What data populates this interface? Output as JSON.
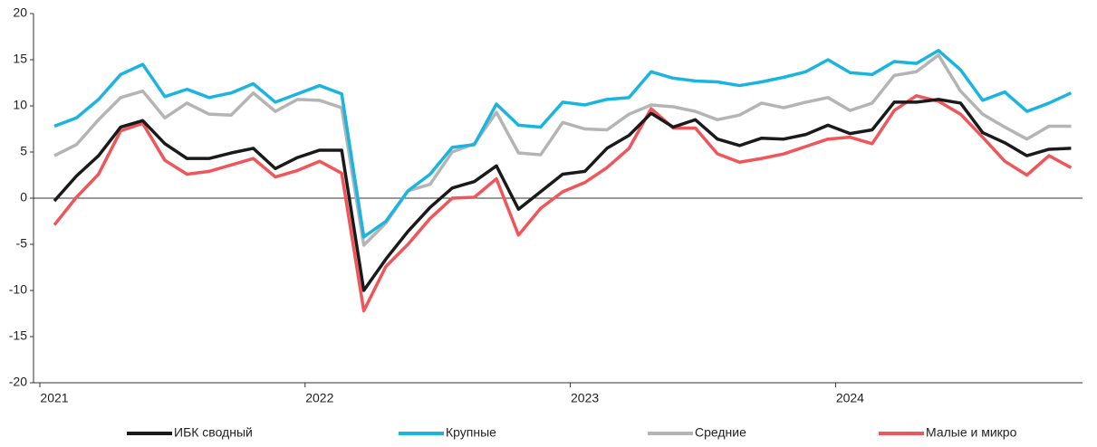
{
  "chart_data": {
    "type": "line",
    "categories": [
      "2021",
      null,
      null,
      null,
      null,
      null,
      null,
      null,
      null,
      null,
      null,
      null,
      "2022",
      null,
      null,
      null,
      null,
      null,
      null,
      null,
      null,
      null,
      null,
      null,
      "2023",
      null,
      null,
      null,
      null,
      null,
      null,
      null,
      null,
      null,
      null,
      null,
      "2024",
      null,
      null,
      null,
      null,
      null,
      null,
      null,
      null,
      null,
      null
    ],
    "series": [
      {
        "name": "ИБК сводный",
        "color": "#1a1a1a",
        "values": [
          -0.3,
          2.4,
          4.6,
          7.7,
          8.4,
          5.9,
          4.3,
          4.3,
          4.9,
          5.4,
          3.2,
          4.4,
          5.2,
          5.2,
          -10,
          -6.6,
          -3.6,
          -1.0,
          1.1,
          1.8,
          3.5,
          -1.2,
          0.7,
          2.6,
          2.9,
          5.4,
          6.8,
          9.2,
          7.7,
          8.5,
          6.4,
          5.7,
          6.5,
          6.4,
          6.9,
          7.9,
          7.0,
          7.4,
          10.4,
          10.4,
          10.7,
          10.3,
          7.1,
          6.0,
          4.6,
          5.3,
          5.4
        ]
      },
      {
        "name": "Крупные",
        "color": "#1ab4e0",
        "values": [
          7.8,
          8.7,
          10.7,
          13.4,
          14.5,
          11.0,
          11.8,
          10.9,
          11.4,
          12.4,
          10.4,
          11.3,
          12.2,
          11.3,
          -4.2,
          -2.5,
          0.8,
          2.6,
          5.5,
          5.8,
          10.2,
          7.9,
          7.7,
          10.4,
          10.1,
          10.7,
          10.9,
          13.7,
          13.0,
          12.7,
          12.6,
          12.2,
          12.6,
          13.1,
          13.7,
          15.0,
          13.6,
          13.4,
          14.8,
          14.6,
          16.0,
          13.9,
          10.6,
          11.5,
          9.4,
          10.3,
          11.4
        ]
      },
      {
        "name": "Средние",
        "color": "#b4b4b4",
        "values": [
          4.6,
          5.8,
          8.5,
          10.9,
          11.6,
          8.7,
          10.3,
          9.1,
          9.0,
          11.4,
          9.4,
          10.7,
          10.6,
          9.8,
          -5.1,
          -2.7,
          0.8,
          1.5,
          5.0,
          5.9,
          9.3,
          4.9,
          4.7,
          8.2,
          7.5,
          7.4,
          9.1,
          10.1,
          9.9,
          9.4,
          8.5,
          9.0,
          10.3,
          9.8,
          10.4,
          10.9,
          9.5,
          10.3,
          13.3,
          13.7,
          15.5,
          11.6,
          9.1,
          7.7,
          6.4,
          7.8,
          7.8
        ]
      },
      {
        "name": "Малые и микро",
        "color": "#f0555a",
        "values": [
          -2.9,
          0.1,
          2.6,
          7.3,
          8.1,
          4.1,
          2.6,
          2.9,
          3.6,
          4.3,
          2.3,
          3.0,
          4.0,
          2.7,
          -12.2,
          -7.4,
          -5.0,
          -2.2,
          0.0,
          0.1,
          2.1,
          -4.0,
          -1.1,
          0.7,
          1.7,
          3.3,
          5.4,
          9.7,
          7.6,
          7.6,
          4.8,
          3.9,
          4.3,
          4.8,
          5.6,
          6.4,
          6.6,
          5.9,
          9.5,
          11.1,
          10.5,
          9.1,
          6.6,
          4.0,
          2.5,
          4.6,
          3.3
        ]
      }
    ],
    "ylim": [
      -20,
      20
    ],
    "yticks": [
      -20,
      -15,
      -10,
      -5,
      0,
      5,
      10,
      15,
      20
    ],
    "legend": "bottom"
  }
}
